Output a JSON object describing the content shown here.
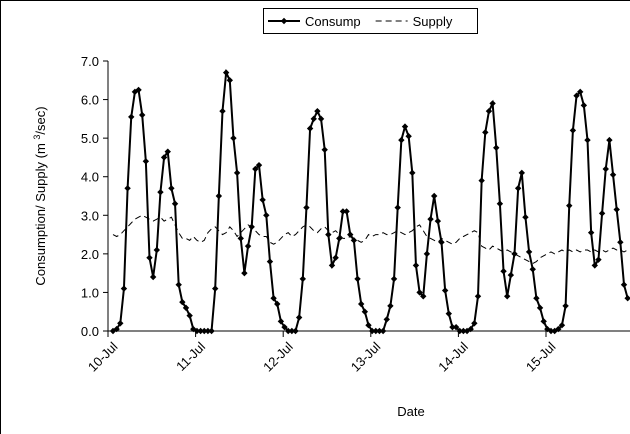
{
  "chart_data": {
    "type": "line",
    "ylabel_parts": [
      "Consumption/ Supply (m ",
      "3",
      "/sec)"
    ],
    "xlabel": "Date",
    "categories": [
      "10-Jul",
      null,
      null,
      null,
      null,
      null,
      null,
      null,
      null,
      null,
      null,
      null,
      null,
      null,
      null,
      null,
      null,
      null,
      null,
      null,
      null,
      null,
      null,
      null,
      "11-Jul",
      null,
      null,
      null,
      null,
      null,
      null,
      null,
      null,
      null,
      null,
      null,
      null,
      null,
      null,
      null,
      null,
      null,
      null,
      null,
      null,
      null,
      null,
      null,
      "12-Jul",
      null,
      null,
      null,
      null,
      null,
      null,
      null,
      null,
      null,
      null,
      null,
      null,
      null,
      null,
      null,
      null,
      null,
      null,
      null,
      null,
      null,
      null,
      null,
      "13-Jul",
      null,
      null,
      null,
      null,
      null,
      null,
      null,
      null,
      null,
      null,
      null,
      null,
      null,
      null,
      null,
      null,
      null,
      null,
      null,
      null,
      null,
      null,
      null,
      "14-Jul",
      null,
      null,
      null,
      null,
      null,
      null,
      null,
      null,
      null,
      null,
      null,
      null,
      null,
      null,
      null,
      null,
      null,
      null,
      null,
      null,
      null,
      null,
      null,
      "15-Jul",
      null,
      null,
      null,
      null,
      null,
      null,
      null,
      null,
      null,
      null,
      null,
      null,
      null,
      null,
      null,
      null,
      null,
      null,
      null,
      null,
      null
    ],
    "series": [
      {
        "name": "Consump",
        "color": "#000000",
        "dash": false,
        "marker": true,
        "values": [
          0,
          0.05,
          0.2,
          1.1,
          3.7,
          5.55,
          6.2,
          6.25,
          5.6,
          4.4,
          1.9,
          1.4,
          2.1,
          3.6,
          4.5,
          4.65,
          3.7,
          3.3,
          1.2,
          0.75,
          0.6,
          0.4,
          0.05,
          0,
          0,
          0,
          0,
          0,
          1.1,
          3.5,
          5.7,
          6.7,
          6.5,
          5.0,
          4.1,
          2.4,
          1.5,
          2.2,
          2.7,
          4.2,
          4.3,
          3.4,
          3.0,
          1.8,
          0.85,
          0.7,
          0.25,
          0.1,
          0,
          0,
          0,
          0.35,
          1.35,
          3.2,
          5.25,
          5.5,
          5.7,
          5.5,
          4.7,
          2.5,
          1.7,
          1.9,
          2.4,
          3.1,
          3.1,
          2.5,
          2.35,
          1.35,
          0.7,
          0.5,
          0.15,
          0,
          0,
          0,
          0,
          0.3,
          0.65,
          1.35,
          3.2,
          4.95,
          5.3,
          5.05,
          4.1,
          1.7,
          1.0,
          0.9,
          2.0,
          2.9,
          3.5,
          2.85,
          2.3,
          1.05,
          0.45,
          0.1,
          0.1,
          0,
          0,
          0,
          0.05,
          0.2,
          0.9,
          3.9,
          5.15,
          5.7,
          5.9,
          4.75,
          3.3,
          1.55,
          0.9,
          1.45,
          2.0,
          3.7,
          4.1,
          2.95,
          2.05,
          1.6,
          0.85,
          0.6,
          0.25,
          0.05,
          0,
          0,
          0.05,
          0.15,
          0.65,
          3.25,
          5.2,
          6.1,
          6.2,
          5.85,
          4.95,
          2.55,
          1.7,
          1.85,
          3.05,
          4.2,
          4.95,
          4.05,
          3.15,
          2.3,
          1.2,
          0.85
        ]
      },
      {
        "name": "Supply",
        "color": "#000000",
        "dash": true,
        "marker": false,
        "values": [
          2.5,
          2.45,
          2.5,
          2.6,
          2.7,
          2.8,
          2.9,
          2.95,
          3.0,
          2.95,
          2.9,
          2.85,
          2.9,
          2.95,
          2.85,
          2.9,
          2.95,
          2.75,
          2.55,
          2.4,
          2.4,
          2.35,
          2.45,
          2.35,
          2.3,
          2.35,
          2.55,
          2.65,
          2.7,
          2.6,
          2.5,
          2.55,
          2.7,
          2.6,
          2.45,
          2.55,
          2.65,
          2.75,
          2.7,
          2.6,
          2.5,
          2.45,
          2.45,
          2.3,
          2.25,
          2.3,
          2.4,
          2.5,
          2.55,
          2.45,
          2.5,
          2.6,
          2.7,
          2.75,
          2.7,
          2.6,
          2.55,
          2.65,
          2.7,
          2.6,
          2.55,
          2.6,
          2.5,
          2.4,
          2.4,
          2.45,
          2.4,
          2.35,
          2.3,
          2.35,
          2.5,
          2.45,
          2.5,
          2.5,
          2.55,
          2.5,
          2.5,
          2.55,
          2.6,
          2.55,
          2.5,
          2.55,
          2.6,
          2.7,
          2.75,
          2.6,
          2.45,
          2.4,
          2.35,
          2.3,
          2.4,
          2.35,
          2.3,
          2.25,
          2.3,
          2.4,
          2.45,
          2.5,
          2.55,
          2.6,
          2.55,
          2.2,
          2.15,
          2.1,
          2.2,
          2.15,
          2.1,
          2.05,
          2.1,
          2.05,
          2.0,
          1.95,
          1.9,
          1.85,
          1.8,
          1.75,
          1.8,
          1.9,
          1.95,
          2.0,
          2.05,
          2.0,
          2.05,
          2.1,
          2.05,
          2.1,
          2.05,
          2.1,
          2.05,
          2.1,
          2.1,
          2.05,
          2.1,
          2.05,
          2.1,
          2.05,
          2.1,
          2.15,
          2.1,
          2.1,
          2.05,
          2.1
        ]
      }
    ],
    "ylim": [
      0,
      7
    ],
    "yticks": [
      {
        "value": 0,
        "label": "0.0"
      },
      {
        "value": 1,
        "label": "1.0"
      },
      {
        "value": 2,
        "label": "2.0"
      },
      {
        "value": 3,
        "label": "3.0"
      },
      {
        "value": 4,
        "label": "4.0"
      },
      {
        "value": 5,
        "label": "5.0"
      },
      {
        "value": 6,
        "label": "6.0"
      },
      {
        "value": 7,
        "label": "7.0"
      }
    ],
    "legend": "top"
  }
}
